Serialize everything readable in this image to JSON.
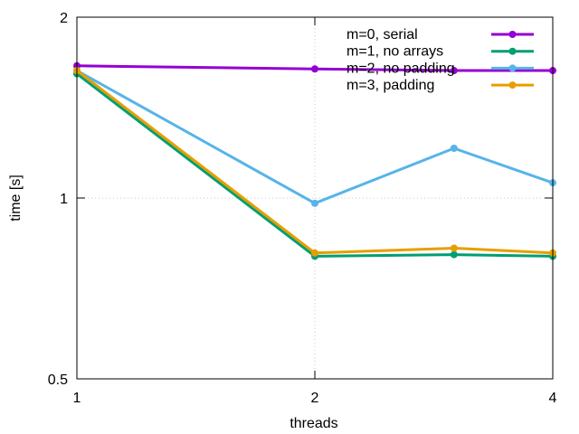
{
  "chart_data": {
    "type": "line",
    "xlabel": "threads",
    "ylabel": "time [s]",
    "xscale": "log2",
    "yscale": "log2",
    "xlim": [
      1,
      4
    ],
    "ylim": [
      0.5,
      2
    ],
    "xticks": [
      {
        "value": 1,
        "label": "1"
      },
      {
        "value": 2,
        "label": "2"
      },
      {
        "value": 4,
        "label": "4"
      }
    ],
    "yticks": [
      {
        "value": 0.5,
        "label": "0.5"
      },
      {
        "value": 1,
        "label": "1"
      },
      {
        "value": 2,
        "label": "2"
      }
    ],
    "grid": true,
    "legend_position": "top-right",
    "x": [
      1,
      2,
      3,
      4
    ],
    "series": [
      {
        "name": "m=0, serial",
        "color": "#9400d3",
        "values": [
          1.66,
          1.64,
          1.63,
          1.63
        ]
      },
      {
        "name": "m=1, no arrays",
        "color": "#009e73",
        "values": [
          1.61,
          0.8,
          0.805,
          0.8
        ]
      },
      {
        "name": "m=2, no padding",
        "color": "#56b4e9",
        "values": [
          1.63,
          0.98,
          1.21,
          1.06
        ]
      },
      {
        "name": "m=3, padding",
        "color": "#e69f00",
        "values": [
          1.63,
          0.81,
          0.825,
          0.81
        ]
      }
    ]
  }
}
